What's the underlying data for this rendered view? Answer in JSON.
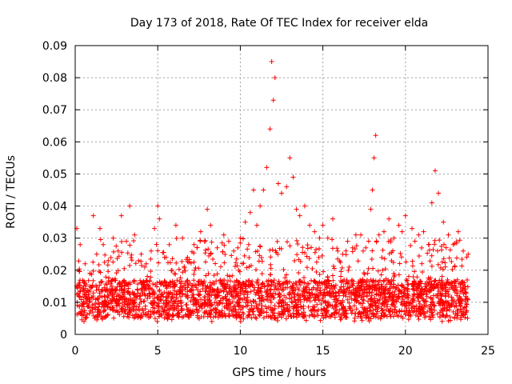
{
  "chart_data": {
    "type": "scatter",
    "title": "Day 173 of 2018, Rate Of TEC Index for receiver elda",
    "xlabel": "GPS time / hours",
    "ylabel": "ROTI / TECUs",
    "xlim": [
      0,
      25
    ],
    "ylim": [
      0,
      0.09
    ],
    "xticks": [
      0,
      5,
      10,
      15,
      20,
      25
    ],
    "xtick_labels": [
      "0",
      "5",
      "10",
      "15",
      "20",
      "25"
    ],
    "yticks": [
      0,
      0.01,
      0.02,
      0.03,
      0.04,
      0.05,
      0.06,
      0.07,
      0.08,
      0.09
    ],
    "ytick_labels": [
      "0",
      "0.01",
      "0.02",
      "0.03",
      "0.04",
      "0.05",
      "0.06",
      "0.07",
      "0.08",
      "0.09"
    ],
    "grid": true,
    "marker": "plus",
    "marker_color": "#ff0000",
    "series": [
      {
        "name": "ROTI",
        "x": [
          0.1,
          0.3,
          0.6,
          0.9,
          1.1,
          1.3,
          1.5,
          1.7,
          2.0,
          2.3,
          2.6,
          2.8,
          3.1,
          3.3,
          3.6,
          4.0,
          4.3,
          4.6,
          4.8,
          5.0,
          5.1,
          5.4,
          5.7,
          6.1,
          6.5,
          6.8,
          7.2,
          7.6,
          8.0,
          8.2,
          8.6,
          9.0,
          9.3,
          9.6,
          10.0,
          10.3,
          10.6,
          10.8,
          11.0,
          11.2,
          11.4,
          11.6,
          11.8,
          11.9,
          12.0,
          12.1,
          12.3,
          12.5,
          12.8,
          13.0,
          13.2,
          13.4,
          13.6,
          13.9,
          14.2,
          14.5,
          14.8,
          15.0,
          15.3,
          15.6,
          15.9,
          16.2,
          16.5,
          16.8,
          17.0,
          17.3,
          17.6,
          17.9,
          18.0,
          18.1,
          18.2,
          18.4,
          18.7,
          19.0,
          19.3,
          19.6,
          19.8,
          20.0,
          20.4,
          20.8,
          21.1,
          21.4,
          21.6,
          21.8,
          22.0,
          22.3,
          22.6,
          22.9,
          23.2,
          23.5,
          23.8
        ],
        "y": [
          0.033,
          0.028,
          0.022,
          0.019,
          0.037,
          0.025,
          0.033,
          0.028,
          0.023,
          0.03,
          0.026,
          0.037,
          0.029,
          0.04,
          0.031,
          0.025,
          0.022,
          0.026,
          0.033,
          0.04,
          0.036,
          0.024,
          0.028,
          0.034,
          0.03,
          0.024,
          0.028,
          0.032,
          0.039,
          0.034,
          0.027,
          0.031,
          0.029,
          0.026,
          0.03,
          0.035,
          0.038,
          0.045,
          0.034,
          0.04,
          0.045,
          0.052,
          0.064,
          0.085,
          0.073,
          0.08,
          0.047,
          0.044,
          0.046,
          0.055,
          0.049,
          0.039,
          0.037,
          0.04,
          0.034,
          0.032,
          0.03,
          0.034,
          0.03,
          0.036,
          0.026,
          0.025,
          0.029,
          0.027,
          0.031,
          0.031,
          0.027,
          0.039,
          0.045,
          0.055,
          0.062,
          0.031,
          0.032,
          0.036,
          0.03,
          0.034,
          0.032,
          0.037,
          0.033,
          0.031,
          0.032,
          0.028,
          0.041,
          0.051,
          0.044,
          0.035,
          0.031,
          0.028,
          0.032,
          0.026,
          0.025
        ]
      }
    ]
  }
}
